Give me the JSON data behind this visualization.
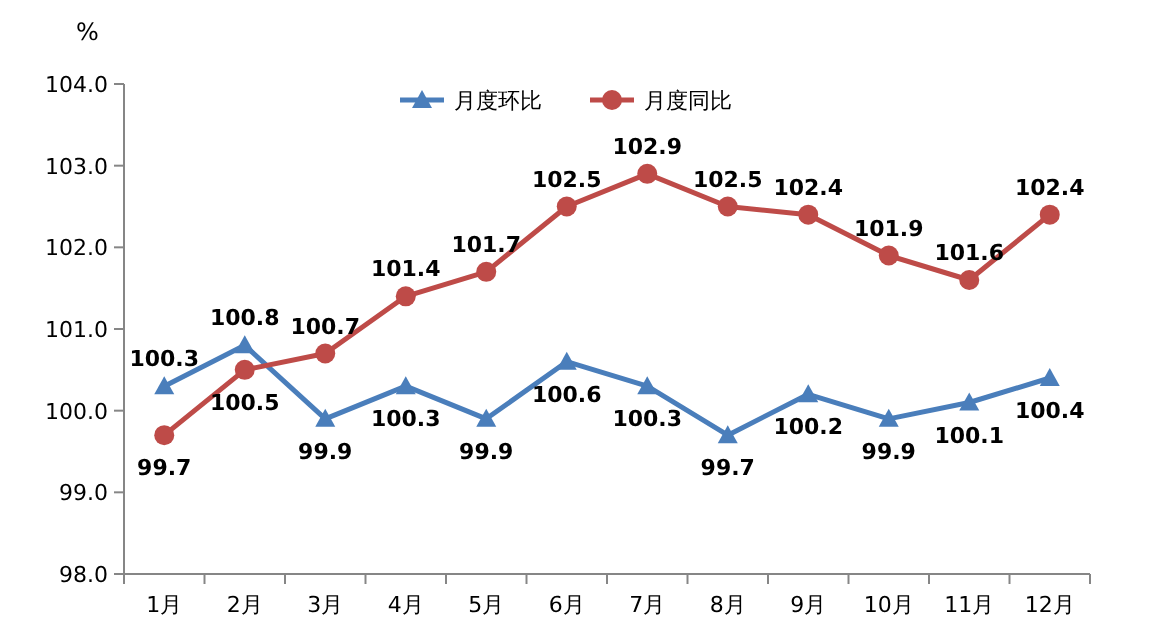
{
  "chart_data": {
    "type": "line",
    "ylabel": "%",
    "categories": [
      "1月",
      "2月",
      "3月",
      "4月",
      "5月",
      "6月",
      "7月",
      "8月",
      "9月",
      "10月",
      "11月",
      "12月"
    ],
    "series": [
      {
        "name": "月度环比",
        "color": "#4a7ebb",
        "marker": "triangle",
        "values": [
          100.3,
          100.8,
          99.9,
          100.3,
          99.9,
          100.6,
          100.3,
          99.7,
          100.2,
          99.9,
          100.1,
          100.4
        ]
      },
      {
        "name": "月度同比",
        "color": "#be4b48",
        "marker": "circle",
        "values": [
          99.7,
          100.5,
          100.7,
          101.4,
          101.7,
          102.5,
          102.9,
          102.5,
          102.4,
          101.9,
          101.6,
          102.4
        ]
      }
    ],
    "ylim": [
      98,
      104
    ],
    "yticks": [
      {
        "value": 98,
        "label": "98.0"
      },
      {
        "value": 99,
        "label": "99.0"
      },
      {
        "value": 100,
        "label": "100.0"
      },
      {
        "value": 101,
        "label": "101.0"
      },
      {
        "value": 102,
        "label": "102.0"
      },
      {
        "value": 103,
        "label": "103.0"
      },
      {
        "value": 104,
        "label": "104.0"
      }
    ],
    "data_labels": true,
    "legend": "top",
    "grid": false
  }
}
